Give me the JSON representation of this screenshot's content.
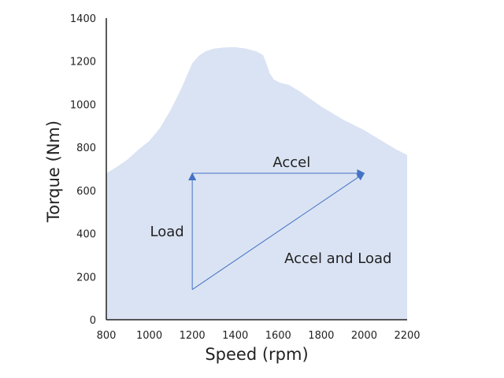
{
  "chart_data": {
    "type": "area",
    "xlabel": "Speed (rpm)",
    "ylabel": "Torque (Nm)",
    "xlim": [
      800,
      2200
    ],
    "ylim": [
      0,
      1400
    ],
    "xticks": [
      800,
      1000,
      1200,
      1400,
      1600,
      1800,
      2000,
      2200
    ],
    "yticks": [
      0,
      200,
      400,
      600,
      800,
      1000,
      1200,
      1400
    ],
    "grid": false,
    "fill_color": "#dae3f3",
    "arrow_color": "#4472c4",
    "torque_envelope": {
      "x": [
        800,
        850,
        900,
        950,
        1000,
        1050,
        1100,
        1150,
        1180,
        1200,
        1230,
        1260,
        1300,
        1350,
        1400,
        1450,
        1500,
        1530,
        1545,
        1560,
        1580,
        1610,
        1650,
        1700,
        1750,
        1800,
        1850,
        1900,
        1950,
        2000,
        2050,
        2100,
        2150,
        2180,
        2200
      ],
      "y": [
        680,
        710,
        745,
        790,
        830,
        890,
        975,
        1075,
        1145,
        1190,
        1225,
        1245,
        1258,
        1264,
        1265,
        1258,
        1245,
        1228,
        1190,
        1145,
        1115,
        1100,
        1090,
        1060,
        1025,
        990,
        960,
        930,
        905,
        880,
        850,
        820,
        790,
        775,
        765
      ]
    },
    "arrows": [
      {
        "label": "Load",
        "from": [
          1200,
          140
        ],
        "to": [
          1200,
          680
        ]
      },
      {
        "label": "Accel",
        "from": [
          1200,
          680
        ],
        "to": [
          2000,
          680
        ]
      },
      {
        "label": "Accel and Load",
        "from": [
          1200,
          140
        ],
        "to": [
          2000,
          680
        ]
      }
    ]
  }
}
